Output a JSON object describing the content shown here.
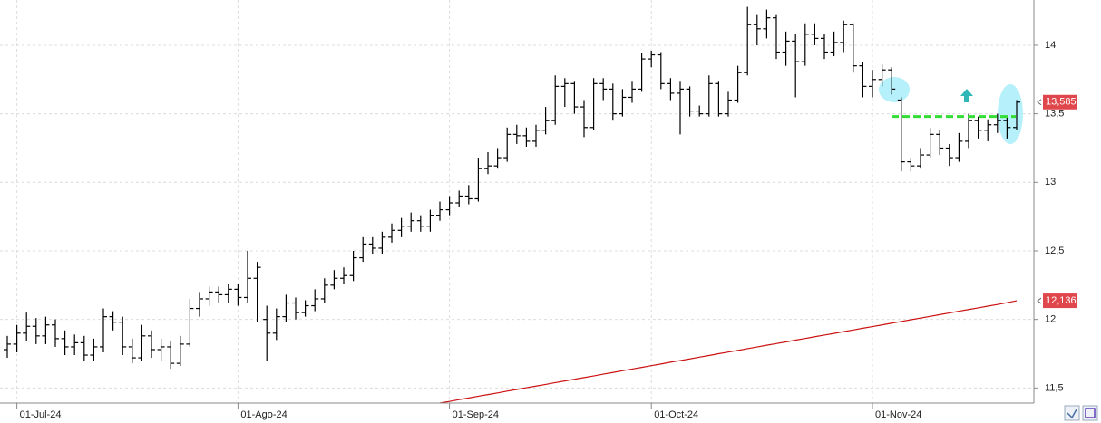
{
  "chart_data": {
    "type": "ohlc",
    "color": "#000000",
    "categories": [
      null,
      "01-Jul-24",
      null,
      null,
      null,
      null,
      null,
      null,
      null,
      null,
      null,
      null,
      null,
      null,
      null,
      null,
      null,
      null,
      null,
      null,
      null,
      null,
      null,
      null,
      "01-Ago-24",
      null,
      null,
      null,
      null,
      null,
      null,
      null,
      null,
      null,
      null,
      null,
      null,
      null,
      null,
      null,
      null,
      null,
      null,
      null,
      null,
      null,
      "01-Sep-24",
      null,
      null,
      null,
      null,
      null,
      null,
      null,
      null,
      null,
      null,
      null,
      null,
      null,
      null,
      null,
      null,
      null,
      null,
      null,
      null,
      "01-Oct-24",
      null,
      null,
      null,
      null,
      null,
      null,
      null,
      null,
      null,
      null,
      null,
      null,
      null,
      null,
      null,
      null,
      null,
      null,
      null,
      null,
      null,
      null,
      "01-Nov-24",
      null,
      null,
      null,
      null,
      null,
      null,
      null,
      null,
      null,
      null,
      null,
      null,
      null,
      null,
      null
    ],
    "open": [
      11.78,
      11.82,
      11.9,
      11.95,
      11.88,
      11.96,
      11.86,
      11.8,
      11.83,
      11.74,
      11.8,
      12.02,
      11.98,
      11.8,
      11.72,
      11.88,
      11.78,
      11.8,
      11.68,
      11.82,
      12.08,
      12.15,
      12.2,
      12.18,
      12.22,
      12.16,
      12.3,
      12.0,
      11.9,
      12.02,
      12.12,
      12.05,
      12.1,
      12.15,
      12.25,
      12.3,
      12.32,
      12.45,
      12.55,
      12.52,
      12.6,
      12.65,
      12.68,
      12.72,
      12.68,
      12.76,
      12.8,
      12.85,
      12.9,
      12.88,
      13.1,
      13.12,
      13.18,
      13.35,
      13.34,
      13.3,
      13.38,
      13.45,
      13.7,
      13.72,
      13.55,
      13.4,
      13.72,
      13.68,
      13.5,
      13.62,
      13.68,
      13.9,
      13.93,
      13.72,
      13.65,
      13.68,
      13.52,
      13.5,
      13.72,
      13.5,
      13.6,
      13.8,
      14.15,
      14.12,
      14.2,
      13.95,
      14.03,
      13.88,
      14.08,
      14.05,
      13.95,
      14.02,
      14.15,
      13.85,
      13.7,
      13.75,
      13.82,
      13.6,
      13.15,
      13.12,
      13.2,
      13.35,
      13.25,
      13.18,
      13.3,
      13.45,
      13.38,
      13.42,
      13.45,
      13.4
    ],
    "high": [
      11.88,
      11.96,
      12.05,
      12.01,
      12.02,
      12.0,
      11.92,
      11.89,
      11.88,
      11.86,
      12.08,
      12.06,
      12.02,
      11.86,
      11.96,
      11.92,
      11.86,
      11.84,
      11.88,
      12.15,
      12.2,
      12.24,
      12.24,
      12.26,
      12.26,
      12.5,
      12.42,
      12.1,
      12.08,
      12.18,
      12.16,
      12.14,
      12.22,
      12.3,
      12.36,
      12.38,
      12.5,
      12.6,
      12.6,
      12.64,
      12.7,
      12.74,
      12.78,
      12.76,
      12.8,
      12.86,
      12.9,
      12.94,
      12.98,
      13.18,
      13.22,
      13.25,
      13.4,
      13.42,
      13.4,
      13.42,
      13.55,
      13.78,
      13.76,
      13.74,
      13.6,
      13.76,
      13.76,
      13.72,
      13.68,
      13.74,
      13.94,
      13.96,
      13.95,
      13.76,
      13.74,
      13.7,
      13.56,
      13.78,
      13.74,
      13.66,
      13.85,
      14.28,
      14.22,
      14.26,
      14.22,
      14.1,
      14.08,
      14.16,
      14.16,
      14.08,
      14.1,
      14.18,
      14.16,
      13.88,
      13.82,
      13.86,
      13.84,
      13.62,
      13.18,
      13.25,
      13.4,
      13.38,
      13.28,
      13.36,
      13.5,
      13.48,
      13.46,
      13.5,
      13.48,
      13.6
    ],
    "low": [
      11.72,
      11.76,
      11.84,
      11.82,
      11.82,
      11.8,
      11.74,
      11.74,
      11.7,
      11.7,
      11.76,
      11.92,
      11.74,
      11.68,
      11.7,
      11.72,
      11.7,
      11.64,
      11.66,
      11.8,
      12.02,
      12.1,
      12.12,
      12.12,
      12.1,
      12.12,
      11.98,
      11.7,
      11.85,
      11.98,
      12.0,
      12.02,
      12.06,
      12.12,
      12.22,
      12.26,
      12.28,
      12.42,
      12.48,
      12.48,
      12.56,
      12.6,
      12.64,
      12.64,
      12.64,
      12.72,
      12.76,
      12.82,
      12.84,
      12.86,
      13.06,
      13.1,
      13.15,
      13.28,
      13.26,
      13.26,
      13.35,
      13.42,
      13.55,
      13.5,
      13.33,
      13.38,
      13.6,
      13.45,
      13.48,
      13.58,
      13.66,
      13.84,
      13.68,
      13.6,
      13.35,
      13.48,
      13.48,
      13.48,
      13.48,
      13.48,
      13.58,
      13.78,
      14.0,
      14.05,
      13.9,
      13.85,
      13.62,
      13.85,
      14.0,
      13.9,
      13.92,
      13.95,
      13.8,
      13.62,
      13.62,
      13.7,
      13.64,
      13.08,
      13.08,
      13.1,
      13.18,
      13.2,
      13.12,
      13.15,
      13.25,
      13.32,
      13.3,
      13.36,
      13.32,
      13.38
    ],
    "close": [
      11.82,
      11.9,
      11.95,
      11.88,
      11.96,
      11.86,
      11.8,
      11.83,
      11.74,
      11.8,
      12.02,
      11.98,
      11.8,
      11.72,
      11.88,
      11.78,
      11.8,
      11.68,
      11.82,
      12.08,
      12.15,
      12.2,
      12.18,
      12.22,
      12.16,
      12.3,
      12.38,
      11.9,
      12.02,
      12.12,
      12.05,
      12.1,
      12.15,
      12.25,
      12.3,
      12.32,
      12.45,
      12.55,
      12.52,
      12.6,
      12.65,
      12.68,
      12.72,
      12.68,
      12.76,
      12.8,
      12.85,
      12.9,
      12.88,
      13.1,
      13.12,
      13.18,
      13.35,
      13.34,
      13.3,
      13.38,
      13.45,
      13.7,
      13.72,
      13.55,
      13.4,
      13.72,
      13.68,
      13.5,
      13.62,
      13.68,
      13.9,
      13.93,
      13.72,
      13.65,
      13.68,
      13.52,
      13.5,
      13.72,
      13.5,
      13.6,
      13.8,
      14.15,
      14.12,
      14.2,
      13.95,
      14.03,
      13.88,
      14.08,
      14.05,
      13.95,
      14.02,
      14.15,
      13.85,
      13.7,
      13.75,
      13.82,
      13.68,
      13.15,
      13.12,
      13.2,
      13.35,
      13.25,
      13.18,
      13.3,
      13.45,
      13.38,
      13.42,
      13.45,
      13.4,
      13.585
    ],
    "last_value_label": "13,585",
    "last_label_color": "#e0474c",
    "overlay": {
      "type": "line",
      "color": "#cc1111",
      "values": [
        null,
        null,
        null,
        null,
        null,
        null,
        null,
        null,
        null,
        null,
        null,
        null,
        null,
        null,
        null,
        null,
        null,
        null,
        null,
        null,
        null,
        null,
        null,
        null,
        null,
        null,
        null,
        null,
        null,
        null,
        null,
        null,
        null,
        null,
        null,
        null,
        null,
        null,
        null,
        null,
        null,
        null,
        null,
        null,
        null,
        11.39,
        11.402,
        11.415,
        11.427,
        11.44,
        11.452,
        11.464,
        11.477,
        11.489,
        11.502,
        11.514,
        11.526,
        11.539,
        11.551,
        11.564,
        11.576,
        11.588,
        11.601,
        11.613,
        11.626,
        11.638,
        11.65,
        11.663,
        11.675,
        11.688,
        11.7,
        11.712,
        11.725,
        11.737,
        11.75,
        11.762,
        11.774,
        11.787,
        11.799,
        11.812,
        11.824,
        11.836,
        11.849,
        11.861,
        11.874,
        11.886,
        11.898,
        11.911,
        11.923,
        11.936,
        11.948,
        11.96,
        11.973,
        11.985,
        11.998,
        12.01,
        12.022,
        12.035,
        12.047,
        12.06,
        12.072,
        12.084,
        12.097,
        12.109,
        12.122,
        12.136
      ],
      "last_value_label": "12,136"
    },
    "level": {
      "value": 13.48,
      "color": "#33dd33"
    },
    "ylim": [
      11.39,
      14.33
    ],
    "yticks": [
      {
        "value": 11.5,
        "label": "11,5"
      },
      12,
      {
        "value": 12.5,
        "label": "12,5"
      },
      13,
      {
        "value": 13.5,
        "label": "13,5"
      },
      14
    ],
    "grid": true
  }
}
